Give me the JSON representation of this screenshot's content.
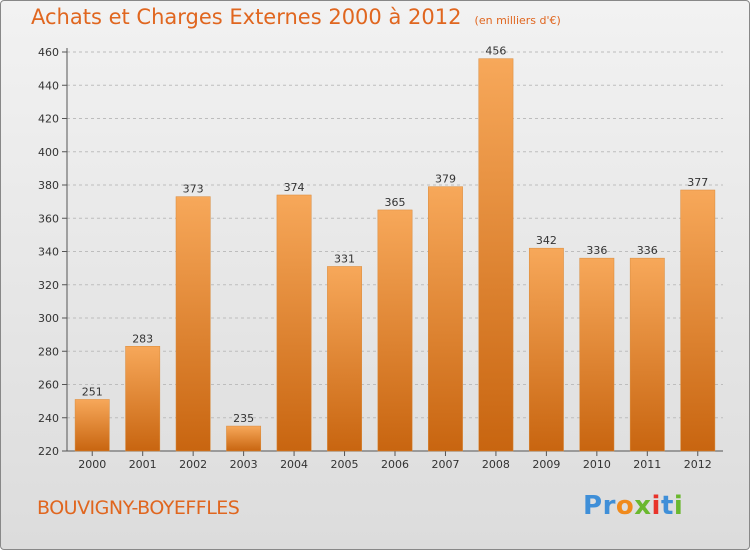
{
  "title": "Achats et Charges Externes 2000 à 2012",
  "subtitle": "(en milliers d'€)",
  "location": "BOUVIGNY-BOYEFFLES",
  "logo": {
    "text": "Proxiti",
    "letters": [
      "P",
      "r",
      "o",
      "x",
      "i",
      "t",
      "i"
    ],
    "colors": [
      "#3f8fd8",
      "#3f8fd8",
      "#f08a1c",
      "#6ab82e",
      "#e8332a",
      "#3f8fd8",
      "#6ab82e"
    ]
  },
  "colors": {
    "accent": "#e0661f",
    "bar_top": "#f7a85a",
    "bar_bottom": "#c86510",
    "grid": "#bdbdbd"
  },
  "chart_data": {
    "type": "bar",
    "categories": [
      "2000",
      "2001",
      "2002",
      "2003",
      "2004",
      "2005",
      "2006",
      "2007",
      "2008",
      "2009",
      "2010",
      "2011",
      "2012"
    ],
    "values": [
      251,
      283,
      373,
      235,
      374,
      331,
      365,
      379,
      456,
      342,
      336,
      336,
      377
    ],
    "title": "Achats et Charges Externes 2000 à 2012",
    "subtitle": "(en milliers d'€)",
    "ylim": [
      220,
      460
    ],
    "yticks": [
      220,
      240,
      260,
      280,
      300,
      320,
      340,
      360,
      380,
      400,
      420,
      440,
      460
    ],
    "grid": true,
    "data_labels": true
  }
}
